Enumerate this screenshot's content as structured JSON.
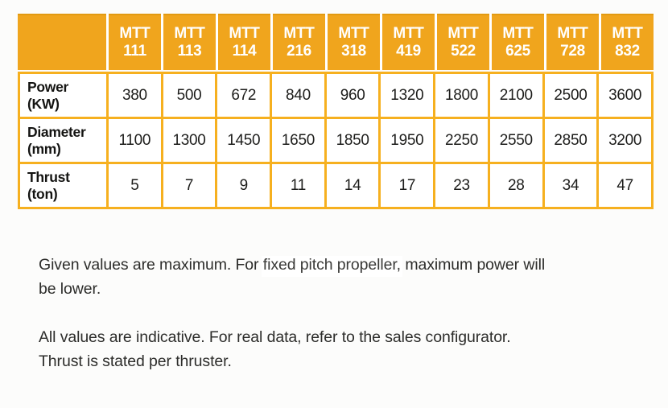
{
  "table": {
    "corner_label": "",
    "columns": [
      {
        "series": "MTT",
        "model": "111"
      },
      {
        "series": "MTT",
        "model": "113"
      },
      {
        "series": "MTT",
        "model": "114"
      },
      {
        "series": "MTT",
        "model": "216"
      },
      {
        "series": "MTT",
        "model": "318"
      },
      {
        "series": "MTT",
        "model": "419"
      },
      {
        "series": "MTT",
        "model": "522"
      },
      {
        "series": "MTT",
        "model": "625"
      },
      {
        "series": "MTT",
        "model": "728"
      },
      {
        "series": "MTT",
        "model": "832"
      }
    ],
    "rows": [
      {
        "label": "Power",
        "unit": "(KW)",
        "values": [
          "380",
          "500",
          "672",
          "840",
          "960",
          "1320",
          "1800",
          "2100",
          "2500",
          "3600"
        ]
      },
      {
        "label": "Diameter",
        "unit": "(mm)",
        "values": [
          "1100",
          "1300",
          "1450",
          "1650",
          "1850",
          "1950",
          "2250",
          "2550",
          "2850",
          "3200"
        ]
      },
      {
        "label": "Thrust",
        "unit": "(ton)",
        "values": [
          "5",
          "7",
          "9",
          "11",
          "14",
          "17",
          "23",
          "28",
          "34",
          "47"
        ]
      }
    ]
  },
  "notes": {
    "note1": {
      "pre": "Given values are maximum. For ",
      "highlight": "fixed pitch propeller,",
      "post": " maximum power will",
      "line2": "be lower."
    },
    "note2": {
      "line1": "All values are indicative. For real data, refer to the sales configurator.",
      "line2": "Thrust is stated per thruster."
    }
  },
  "colors": {
    "header_orange": "#f0a51d",
    "grid_orange": "#f6b01f",
    "header_text": "#ffffff",
    "body_text": "#1d1d1b"
  }
}
